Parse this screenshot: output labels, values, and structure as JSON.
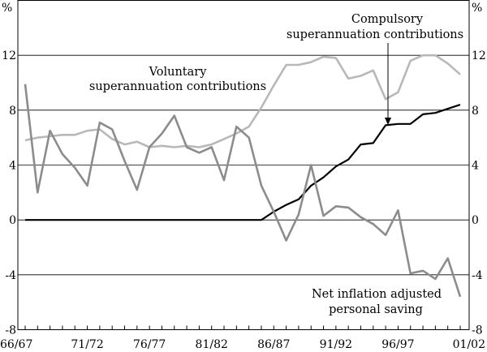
{
  "chart_data": {
    "type": "line",
    "unit_left": "%",
    "unit_right": "%",
    "ylim": [
      -8,
      16
    ],
    "yticks": [
      "-8",
      "-4",
      "0",
      "4",
      "8",
      "12"
    ],
    "x": [
      "66/67",
      "67/68",
      "68/69",
      "69/70",
      "70/71",
      "71/72",
      "72/73",
      "73/74",
      "74/75",
      "75/76",
      "76/77",
      "77/78",
      "78/79",
      "79/80",
      "80/81",
      "81/82",
      "82/83",
      "83/84",
      "84/85",
      "85/86",
      "86/87",
      "87/88",
      "88/89",
      "89/90",
      "90/91",
      "91/92",
      "92/93",
      "93/94",
      "94/95",
      "95/96",
      "96/97",
      "97/98",
      "98/99",
      "99/00",
      "00/01",
      "01/02"
    ],
    "xtick_labels": [
      "66/67",
      "71/72",
      "76/77",
      "81/82",
      "86/87",
      "91/92",
      "96/97",
      "01/02"
    ],
    "series": [
      {
        "name": "Voluntary superannuation contributions",
        "color": "#b8b8b8",
        "values": [
          5.8,
          6.0,
          6.1,
          6.2,
          6.2,
          6.5,
          6.6,
          5.9,
          5.5,
          5.7,
          5.3,
          5.4,
          5.3,
          5.4,
          5.3,
          5.5,
          5.9,
          6.3,
          6.8,
          8.2,
          9.8,
          11.3,
          11.3,
          11.5,
          11.9,
          11.8,
          10.3,
          10.5,
          10.9,
          8.8,
          9.3,
          11.6,
          12.0,
          12.0,
          11.4,
          10.6
        ]
      },
      {
        "name": "Compulsory superannuation contributions",
        "color": "#000000",
        "values": [
          0,
          0,
          0,
          0,
          0,
          0,
          0,
          0,
          0,
          0,
          0,
          0,
          0,
          0,
          0,
          0,
          0,
          0,
          0,
          0,
          0.6,
          1.1,
          1.5,
          2.5,
          3.1,
          3.9,
          4.4,
          5.5,
          5.6,
          6.9,
          7.0,
          7.0,
          7.7,
          7.8,
          8.1,
          8.4
        ]
      },
      {
        "name": "Net inflation adjusted personal saving",
        "color": "#8c8c8c",
        "values": [
          9.9,
          2.0,
          6.5,
          4.8,
          3.8,
          2.5,
          7.1,
          6.6,
          4.3,
          2.2,
          5.3,
          6.3,
          7.6,
          5.3,
          4.9,
          5.3,
          2.9,
          6.8,
          6.0,
          2.5,
          0.6,
          -1.5,
          0.4,
          4.0,
          0.3,
          1.0,
          0.9,
          0.2,
          -0.3,
          -1.1,
          0.7,
          -3.9,
          -3.7,
          -4.3,
          -2.8,
          -5.6
        ]
      }
    ],
    "annotations": {
      "voluntary": [
        "Voluntary",
        "superannuation contributions"
      ],
      "compulsory": [
        "Compulsory",
        "superannuation contributions"
      ],
      "saving": [
        "Net inflation adjusted",
        "personal saving"
      ]
    }
  }
}
